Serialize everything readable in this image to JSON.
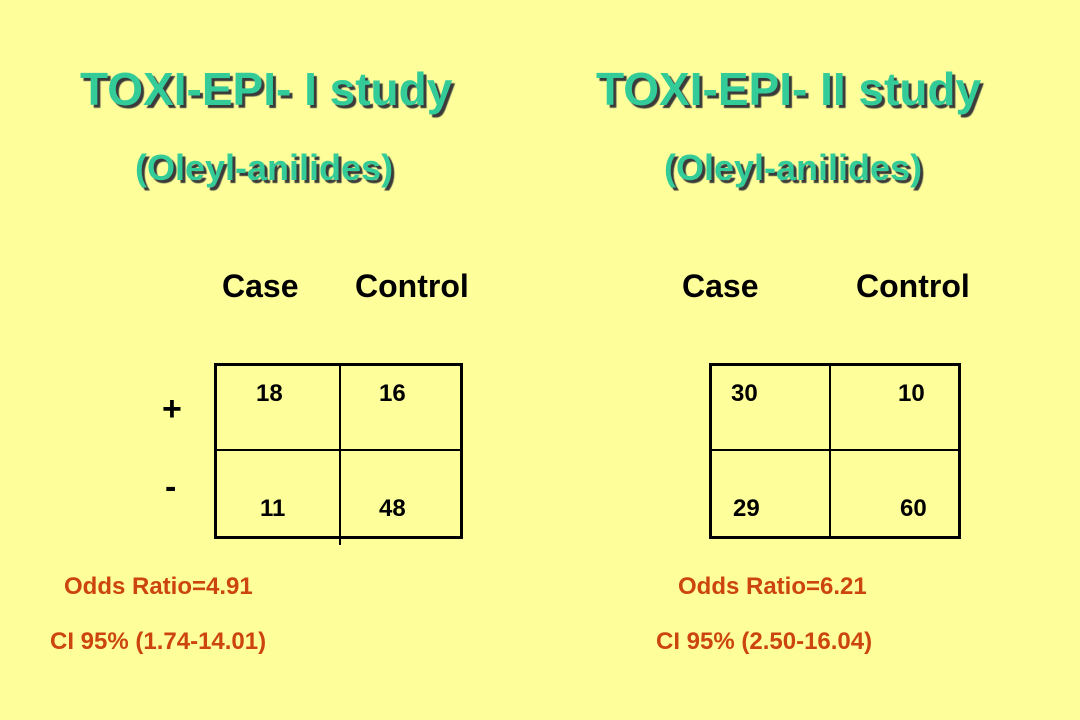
{
  "study1": {
    "title": "TOXI-EPI- I study",
    "subtitle": "(Oleyl-anilides)",
    "col_case": "Case",
    "col_control": "Control",
    "row_plus": "+",
    "row_minus": "-",
    "cells": {
      "plus_case": "18",
      "plus_control": "16",
      "minus_case": "11",
      "minus_control": "48"
    },
    "odds_ratio": "Odds Ratio=4.91",
    "ci": "CI 95% (1.74-14.01)"
  },
  "study2": {
    "title": "TOXI-EPI- II study",
    "subtitle": "(Oleyl-anilides)",
    "col_case": "Case",
    "col_control": "Control",
    "cells": {
      "plus_case": "30",
      "plus_control": "10",
      "minus_case": "29",
      "minus_control": "60"
    },
    "odds_ratio": "Odds Ratio=6.21",
    "ci": "CI 95% (2.50-16.04)"
  },
  "colors": {
    "background": "#fefe9a",
    "title_green": "#33cc99",
    "stat_orange": "#cc4410"
  }
}
